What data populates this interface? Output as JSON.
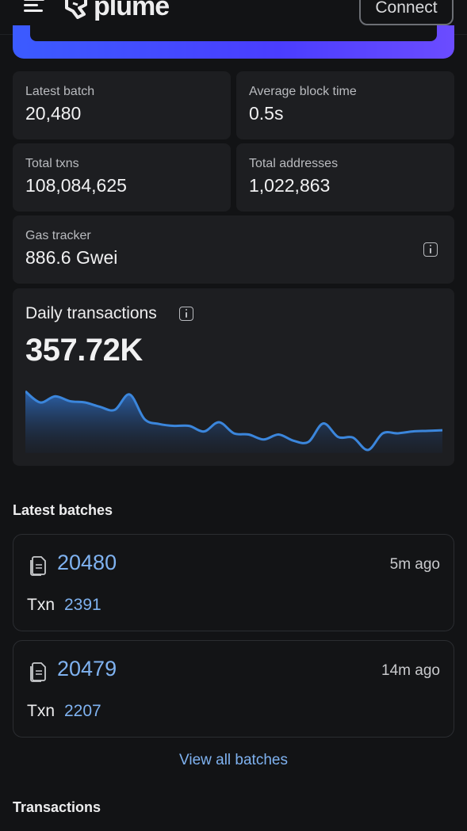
{
  "header": {
    "logo_text": "plume",
    "connect_label": "Connect"
  },
  "stats": {
    "latest_batch": {
      "label": "Latest batch",
      "value": "20,480"
    },
    "avg_block_time": {
      "label": "Average block time",
      "value": "0.5s"
    },
    "total_txns": {
      "label": "Total txns",
      "value": "108,084,625"
    },
    "total_addresses": {
      "label": "Total addresses",
      "value": "1,022,863"
    },
    "gas_tracker": {
      "label": "Gas tracker",
      "value": "886.6 Gwei"
    }
  },
  "daily_transactions": {
    "title": "Daily transactions",
    "value": "357.72K"
  },
  "chart_data": {
    "type": "area",
    "title": "Daily transactions",
    "xlabel": "",
    "ylabel": "",
    "grid": false,
    "color": "#3b82d6",
    "values": [
      100,
      82,
      92,
      84,
      82,
      75,
      70,
      95,
      55,
      47,
      44,
      44,
      35,
      50,
      32,
      30,
      22,
      30,
      20,
      18,
      48,
      26,
      25,
      5,
      32,
      32,
      35,
      36,
      37
    ]
  },
  "latest_batches": {
    "title": "Latest batches",
    "items": [
      {
        "number": "20480",
        "time": "5m ago",
        "txn_label": "Txn",
        "txn_count": "2391"
      },
      {
        "number": "20479",
        "time": "14m ago",
        "txn_label": "Txn",
        "txn_count": "2207"
      }
    ],
    "view_all_label": "View all batches"
  },
  "transactions": {
    "title": "Transactions"
  },
  "icons": {
    "menu": "hamburger-menu-icon",
    "logo": "plume-logo-icon",
    "info": "info-icon",
    "batch": "document-icon"
  }
}
